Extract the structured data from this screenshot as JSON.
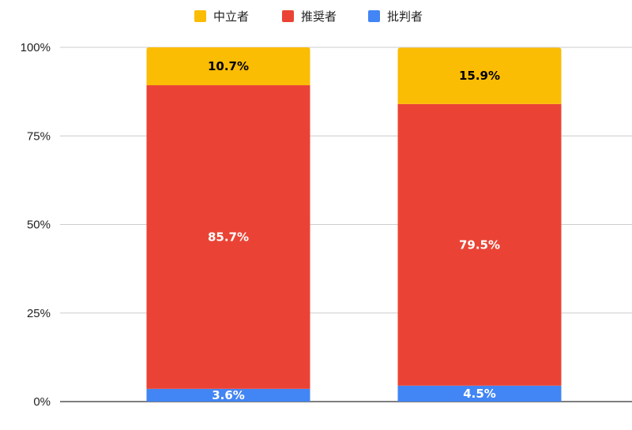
{
  "chart_data": {
    "type": "bar",
    "stacked": true,
    "percent_scale": true,
    "categories": [
      "",
      ""
    ],
    "series": [
      {
        "name": "批判者",
        "color": "#4285F4",
        "values": [
          3.6,
          4.5
        ],
        "labels": [
          "3.6%",
          "4.5%"
        ],
        "label_color": "#ffffff"
      },
      {
        "name": "推奨者",
        "color": "#EA4335",
        "values": [
          85.7,
          79.5
        ],
        "labels": [
          "85.7%",
          "79.5%"
        ],
        "label_color": "#ffffff"
      },
      {
        "name": "中立者",
        "color": "#FBBC04",
        "values": [
          10.7,
          15.9
        ],
        "labels": [
          "10.7%",
          "15.9%"
        ],
        "label_color": "#000000"
      }
    ],
    "legend_order": [
      "中立者",
      "推奨者",
      "批判者"
    ],
    "legend_position": "top-center",
    "y_ticks": [
      "0%",
      "25%",
      "50%",
      "75%",
      "100%"
    ],
    "y_tick_values": [
      0,
      25,
      50,
      75,
      100
    ],
    "ylim": [
      0,
      100
    ],
    "grid": true,
    "title": "",
    "xlabel": "",
    "ylabel": ""
  }
}
